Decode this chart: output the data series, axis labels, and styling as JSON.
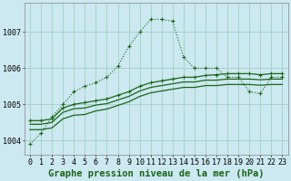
{
  "title": "Graphe pression niveau de la mer (hPa)",
  "bg_color": "#cce8f0",
  "grid_color": "#99ccbb",
  "line_color": "#1a6618",
  "x_labels": [
    "0",
    "1",
    "2",
    "3",
    "4",
    "5",
    "6",
    "7",
    "8",
    "9",
    "10",
    "11",
    "12",
    "13",
    "14",
    "15",
    "16",
    "17",
    "18",
    "19",
    "20",
    "21",
    "22",
    "23"
  ],
  "hours": [
    0,
    1,
    2,
    3,
    4,
    5,
    6,
    7,
    8,
    9,
    10,
    11,
    12,
    13,
    14,
    15,
    16,
    17,
    18,
    19,
    20,
    21,
    22,
    23
  ],
  "series1": [
    1003.9,
    1004.2,
    1004.65,
    1005.0,
    1005.35,
    1005.5,
    1005.6,
    1005.75,
    1006.05,
    1006.6,
    1007.0,
    1007.35,
    1007.35,
    1007.3,
    1006.3,
    1006.0,
    1006.0,
    1006.0,
    1005.75,
    1005.75,
    1005.35,
    1005.3,
    1005.75,
    1005.75
  ],
  "series2": [
    1004.55,
    1004.55,
    1004.6,
    1004.9,
    1005.0,
    1005.05,
    1005.1,
    1005.15,
    1005.25,
    1005.35,
    1005.5,
    1005.6,
    1005.65,
    1005.7,
    1005.75,
    1005.75,
    1005.8,
    1005.82,
    1005.85,
    1005.85,
    1005.85,
    1005.82,
    1005.85,
    1005.85
  ],
  "series3": [
    1004.45,
    1004.45,
    1004.5,
    1004.78,
    1004.88,
    1004.9,
    1004.98,
    1005.02,
    1005.12,
    1005.22,
    1005.37,
    1005.47,
    1005.52,
    1005.57,
    1005.62,
    1005.62,
    1005.67,
    1005.67,
    1005.7,
    1005.7,
    1005.7,
    1005.68,
    1005.7,
    1005.7
  ],
  "series4": [
    1004.3,
    1004.3,
    1004.35,
    1004.6,
    1004.7,
    1004.72,
    1004.82,
    1004.87,
    1004.97,
    1005.07,
    1005.22,
    1005.32,
    1005.37,
    1005.42,
    1005.47,
    1005.47,
    1005.52,
    1005.52,
    1005.55,
    1005.55,
    1005.55,
    1005.53,
    1005.55,
    1005.55
  ],
  "ylim": [
    1003.6,
    1007.8
  ],
  "yticks": [
    1004,
    1005,
    1006,
    1007
  ],
  "title_fontsize": 7.5,
  "tick_fontsize": 6
}
